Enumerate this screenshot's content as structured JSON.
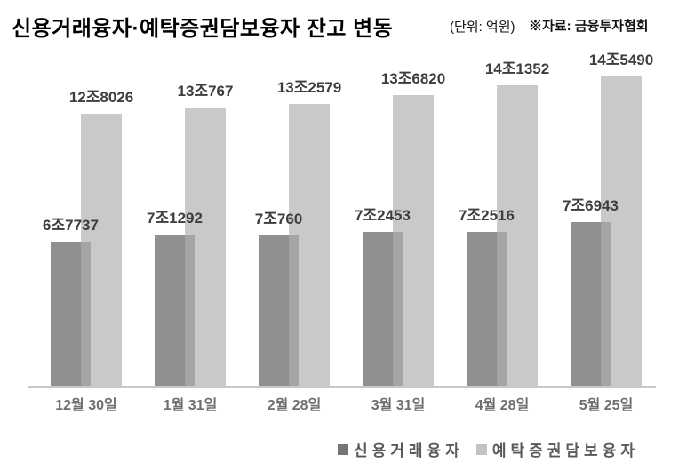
{
  "header": {
    "title": "신용거래융자·예탁증권담보융자 잔고 변동",
    "unit_note": "(단위: 억원)",
    "source_note": "※자료: 금융투자협회"
  },
  "legend": {
    "series1_label": "신용거래융자",
    "series2_label": "예탁증권담보융자"
  },
  "colors": {
    "series1_bar": "#909090",
    "series2_bar": "#c9c9c9",
    "overlap": "#a5a5a5",
    "legend_series1": "#757575",
    "legend_series2": "#c3c3c3",
    "value_label": "#3d3d3d",
    "axis_label": "#6e6e6e",
    "axis_line": "#c8c8c8",
    "legend_text": "#595959",
    "title_text": "#000000"
  },
  "chart_data": {
    "type": "bar",
    "title": "신용거래융자·예탁증권담보융자 잔고 변동",
    "unit": "억원",
    "source": "금융투자협회",
    "categories": [
      "12월 30일",
      "1월 31일",
      "2월 28일",
      "3월 31일",
      "4월 28일",
      "5월 25일"
    ],
    "series": [
      {
        "name": "신용거래융자",
        "values": [
          67737,
          71292,
          70760,
          72453,
          72516,
          76943
        ],
        "labels": [
          "6조7737",
          "7조1292",
          "7조760",
          "7조2453",
          "7조2516",
          "7조6943"
        ]
      },
      {
        "name": "예탁증권담보융자",
        "values": [
          128026,
          130767,
          132579,
          136820,
          141352,
          145490
        ],
        "labels": [
          "12조8026",
          "13조767",
          "13조2579",
          "13조6820",
          "14조1352",
          "14조5490"
        ]
      }
    ],
    "ylim": [
      0,
      150000
    ],
    "grid": false,
    "y_axis_shown": false,
    "value_labels_shown": true,
    "legend_position": "bottom-right"
  }
}
